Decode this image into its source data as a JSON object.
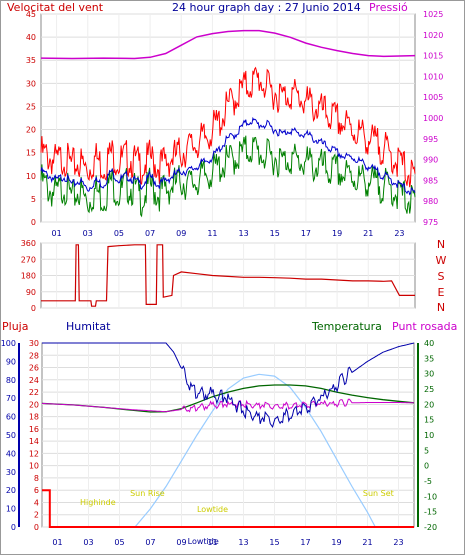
{
  "header": {
    "title": "24 hour graph day : 27 Junio 2014",
    "left_label": "Velocitat del vent",
    "right_label": "Pressió"
  },
  "bottom_header": {
    "rain_label": "Pluja",
    "humidity_label": "Humitat",
    "temperature_label": "Temperatura",
    "dewpoint_label": "Punt rosada"
  },
  "compass_labels": [
    "N",
    "W",
    "S",
    "E",
    "N"
  ],
  "colors": {
    "wind_gust": "#ff0000",
    "wind_speed": "#008000",
    "wind_avg": "#0000cc",
    "pressure": "#cc00cc",
    "wind_dir": "#cc0000",
    "humidity": "#0000aa",
    "temperature": "#006600",
    "dewpoint": "#cc00cc",
    "solar": "#99ccff",
    "rain": "#ff0000",
    "astro_labels": "#cccc00"
  },
  "chart_data": [
    {
      "id": "wind-pressure",
      "type": "line",
      "x_ticks": [
        "01",
        "03",
        "05",
        "07",
        "09",
        "11",
        "13",
        "15",
        "17",
        "19",
        "21",
        "23"
      ],
      "x_range": [
        0,
        24
      ],
      "y_left_ticks": [
        "0",
        "5",
        "10",
        "15",
        "20",
        "25",
        "30",
        "35",
        "40",
        "45"
      ],
      "y_left_range": [
        0,
        45
      ],
      "y_right_ticks": [
        "975",
        "980",
        "985",
        "990",
        "995",
        "1000",
        "1005",
        "1010",
        "1015",
        "1020",
        "1025"
      ],
      "y_right_range": [
        975,
        1025
      ],
      "series": [
        {
          "key": "gust",
          "axis": "left",
          "x": [
            0,
            0.5,
            1,
            1.5,
            2,
            2.5,
            3,
            3.5,
            4,
            4.5,
            5,
            5.5,
            6,
            6.5,
            7,
            7.5,
            8,
            8.5,
            9,
            9.5,
            10,
            10.5,
            11,
            11.5,
            12,
            12.5,
            13,
            13.5,
            14,
            14.5,
            15,
            15.5,
            16,
            16.5,
            17,
            17.5,
            18,
            18.5,
            19,
            19.5,
            20,
            20.5,
            21,
            21.5,
            22,
            22.5,
            23,
            23.5,
            24
          ],
          "values": [
            15,
            14,
            13,
            14,
            12,
            13,
            11,
            14,
            12,
            15,
            13,
            14,
            13,
            12,
            14,
            12,
            13,
            14,
            15,
            16,
            17,
            18,
            20,
            22,
            25,
            27,
            29,
            30,
            31,
            29,
            28,
            27,
            28,
            27,
            26,
            25,
            24,
            23,
            22,
            21,
            20,
            19,
            18,
            17,
            16,
            14,
            13,
            11,
            9
          ]
        },
        {
          "key": "speed",
          "axis": "left",
          "x": [
            0,
            0.5,
            1,
            1.5,
            2,
            2.5,
            3,
            3.5,
            4,
            4.5,
            5,
            5.5,
            6,
            6.5,
            7,
            7.5,
            8,
            8.5,
            9,
            9.5,
            10,
            10.5,
            11,
            11.5,
            12,
            12.5,
            13,
            13.5,
            14,
            14.5,
            15,
            15.5,
            16,
            16.5,
            17,
            17.5,
            18,
            18.5,
            19,
            19.5,
            20,
            20.5,
            21,
            21.5,
            22,
            22.5,
            23,
            23.5,
            24
          ],
          "values": [
            9,
            7,
            6,
            8,
            5,
            7,
            4,
            7,
            5,
            9,
            6,
            8,
            7,
            5,
            8,
            6,
            7,
            8,
            9,
            8,
            9,
            10,
            11,
            12,
            13,
            14,
            15,
            16,
            15,
            14,
            14,
            13,
            14,
            13,
            13,
            12,
            12,
            11,
            11,
            10,
            10,
            9,
            9,
            8,
            8,
            7,
            6,
            5,
            4
          ]
        },
        {
          "key": "avg",
          "axis": "left",
          "x": [
            0,
            0.5,
            1,
            1.5,
            2,
            2.5,
            3,
            3.5,
            4,
            4.5,
            5,
            5.5,
            6,
            6.5,
            7,
            7.5,
            8,
            8.5,
            9,
            9.5,
            10,
            10.5,
            11,
            11.5,
            12,
            12.5,
            13,
            13.5,
            14,
            14.5,
            15,
            15.5,
            16,
            16.5,
            17,
            17.5,
            18,
            18.5,
            19,
            19.5,
            20,
            20.5,
            21,
            21.5,
            22,
            22.5,
            23,
            23.5,
            24
          ],
          "values": [
            11,
            10,
            9,
            10,
            8,
            9,
            7,
            9,
            8,
            11,
            9,
            10,
            9,
            8,
            10,
            8,
            9,
            10,
            11,
            11,
            12,
            13,
            14,
            16,
            18,
            19,
            21,
            22,
            21,
            21,
            20,
            19,
            20,
            19,
            19,
            18,
            17,
            16,
            15,
            14,
            14,
            13,
            12,
            11,
            10,
            9,
            8,
            7,
            6
          ]
        },
        {
          "key": "pressure",
          "axis": "right",
          "x": [
            0,
            2,
            4,
            6,
            7,
            8,
            9,
            10,
            11,
            12,
            13,
            14,
            15,
            16,
            17,
            18,
            19,
            20,
            21,
            22,
            23,
            24
          ],
          "values": [
            1014.4,
            1014.3,
            1014.4,
            1014.3,
            1014.6,
            1015.5,
            1017.5,
            1019.5,
            1020.3,
            1020.8,
            1021.0,
            1021.0,
            1020.4,
            1019.4,
            1018.0,
            1017.0,
            1016.2,
            1015.5,
            1015.0,
            1014.8,
            1014.9,
            1015.0
          ]
        }
      ]
    },
    {
      "id": "wind-direction",
      "type": "line",
      "x_range": [
        0,
        24
      ],
      "y_ticks": [
        "0",
        "90",
        "180",
        "270",
        "360"
      ],
      "y_range": [
        0,
        360
      ],
      "series": [
        {
          "key": "direction",
          "x": [
            0,
            1.5,
            2.2,
            2.25,
            2.4,
            2.45,
            3.2,
            3.25,
            3.5,
            3.55,
            4.2,
            4.3,
            5,
            6,
            6.7,
            6.75,
            7.4,
            7.45,
            7.8,
            7.85,
            8.4,
            8.5,
            9,
            10,
            11,
            12,
            13,
            14,
            15,
            16,
            17,
            18,
            19,
            20,
            21,
            22,
            22.5,
            23,
            24
          ],
          "values": [
            40,
            40,
            40,
            350,
            350,
            40,
            40,
            10,
            10,
            40,
            40,
            340,
            345,
            350,
            350,
            20,
            20,
            350,
            350,
            60,
            70,
            180,
            200,
            190,
            180,
            175,
            170,
            170,
            168,
            165,
            160,
            160,
            155,
            150,
            150,
            148,
            150,
            70,
            70
          ]
        }
      ]
    },
    {
      "id": "temp-humidity-rain",
      "type": "line",
      "x_range": [
        0,
        24
      ],
      "y_left_ticks": [
        "0",
        "10",
        "20",
        "30",
        "40",
        "50",
        "60",
        "70",
        "80",
        "90",
        "100"
      ],
      "y_left_range": [
        0,
        100
      ],
      "y_rain_ticks": [
        "0",
        "2",
        "4",
        "6",
        "8",
        "10",
        "12",
        "14",
        "16",
        "18",
        "20",
        "22",
        "24",
        "26",
        "28",
        "30"
      ],
      "y_rain_range": [
        0,
        30
      ],
      "y_right_ticks": [
        "-20",
        "-15",
        "-10",
        "-5",
        "0",
        "5",
        "10",
        "15",
        "20",
        "25",
        "30",
        "35",
        "40"
      ],
      "y_right_range": [
        -20,
        40
      ],
      "annotations": [
        "Highinde",
        "Sun Rise",
        "Lowtide",
        "Sun Set",
        "Lowtide"
      ],
      "series": [
        {
          "key": "humidity",
          "axis": "left",
          "x": [
            0,
            2,
            4,
            6,
            8,
            8.5,
            9,
            9.5,
            10,
            11,
            12,
            12.5,
            13,
            13.5,
            14,
            14.5,
            15,
            15.5,
            16,
            17,
            18,
            19,
            20,
            21,
            22,
            23,
            24
          ],
          "values": [
            100,
            100,
            100,
            100,
            100,
            95,
            86,
            78,
            73,
            72,
            70,
            66,
            63,
            62,
            60,
            59,
            58,
            60,
            62,
            65,
            70,
            77,
            84,
            90,
            95,
            98,
            100
          ]
        },
        {
          "key": "temperature",
          "axis": "right",
          "x": [
            0,
            2,
            4,
            6,
            7,
            8,
            9,
            10,
            11,
            12,
            13,
            14,
            15,
            16,
            17,
            18,
            19,
            20,
            21,
            22,
            23,
            24
          ],
          "values": [
            20.3,
            19.8,
            19.0,
            18.0,
            17.5,
            17.6,
            18.6,
            20.5,
            22.5,
            24.0,
            25.2,
            26.0,
            26.3,
            26.3,
            26.0,
            25.2,
            24.0,
            23.0,
            22.2,
            21.5,
            21.0,
            20.5
          ]
        },
        {
          "key": "dewpoint",
          "axis": "right",
          "x": [
            0,
            2,
            4,
            6,
            8,
            9,
            10,
            11,
            12,
            13,
            14,
            15,
            16,
            17,
            18,
            19,
            20,
            21,
            22,
            23,
            24
          ],
          "values": [
            20.3,
            19.8,
            19.0,
            18.2,
            17.6,
            18.3,
            19.0,
            19.8,
            20.0,
            20.0,
            19.8,
            19.6,
            19.7,
            20.0,
            20.2,
            20.3,
            20.5,
            20.6,
            20.6,
            20.6,
            20.5
          ]
        },
        {
          "key": "solar",
          "axis": "left",
          "x": [
            6,
            7,
            8,
            9,
            10,
            11,
            12,
            13,
            14,
            15,
            16,
            17,
            18,
            19,
            20,
            21,
            21.5
          ],
          "values": [
            0,
            10,
            22,
            36,
            50,
            63,
            75,
            81,
            83,
            82,
            76,
            65,
            52,
            37,
            22,
            8,
            0
          ]
        },
        {
          "key": "rain",
          "axis": "rain",
          "x": [
            0,
            0.5,
            0.5,
            24
          ],
          "values": [
            6,
            6,
            0,
            0
          ]
        }
      ]
    }
  ]
}
